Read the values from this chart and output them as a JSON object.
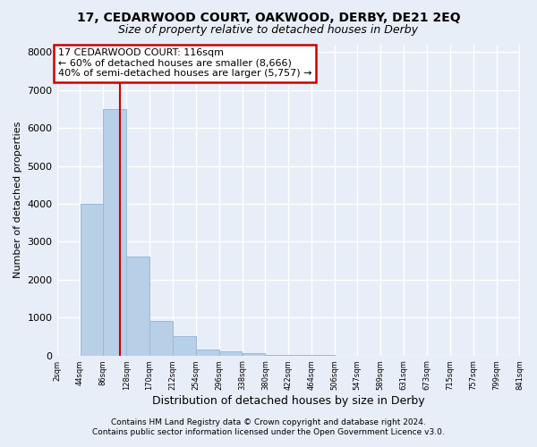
{
  "title1": "17, CEDARWOOD COURT, OAKWOOD, DERBY, DE21 2EQ",
  "title2": "Size of property relative to detached houses in Derby",
  "xlabel": "Distribution of detached houses by size in Derby",
  "ylabel": "Number of detached properties",
  "footer1": "Contains HM Land Registry data © Crown copyright and database right 2024.",
  "footer2": "Contains public sector information licensed under the Open Government Licence v3.0.",
  "annotation_title": "17 CEDARWOOD COURT: 116sqm",
  "annotation_line1": "← 60% of detached houses are smaller (8,666)",
  "annotation_line2": "40% of semi-detached houses are larger (5,757) →",
  "bar_edges": [
    2,
    44,
    86,
    128,
    170,
    212,
    254,
    296,
    338,
    380,
    422,
    464,
    506,
    547,
    589,
    631,
    673,
    715,
    757,
    799,
    841
  ],
  "bar_heights": [
    0,
    4000,
    6500,
    2600,
    900,
    500,
    150,
    100,
    50,
    10,
    5,
    2,
    0,
    0,
    0,
    0,
    0,
    0,
    0,
    0
  ],
  "bar_color": "#b8cfe8",
  "bar_edge_color": "#9ab8d8",
  "vline_x": 116,
  "vline_color": "#cc0000",
  "ylim": [
    0,
    8200
  ],
  "yticks": [
    0,
    1000,
    2000,
    3000,
    4000,
    5000,
    6000,
    7000,
    8000
  ],
  "bg_color": "#e8eef8",
  "plot_bg_color": "#e8eef8",
  "grid_color": "#ffffff",
  "annotation_box_color": "#ffffff",
  "annotation_box_edge": "#cc0000",
  "title1_fontsize": 10,
  "title2_fontsize": 9
}
